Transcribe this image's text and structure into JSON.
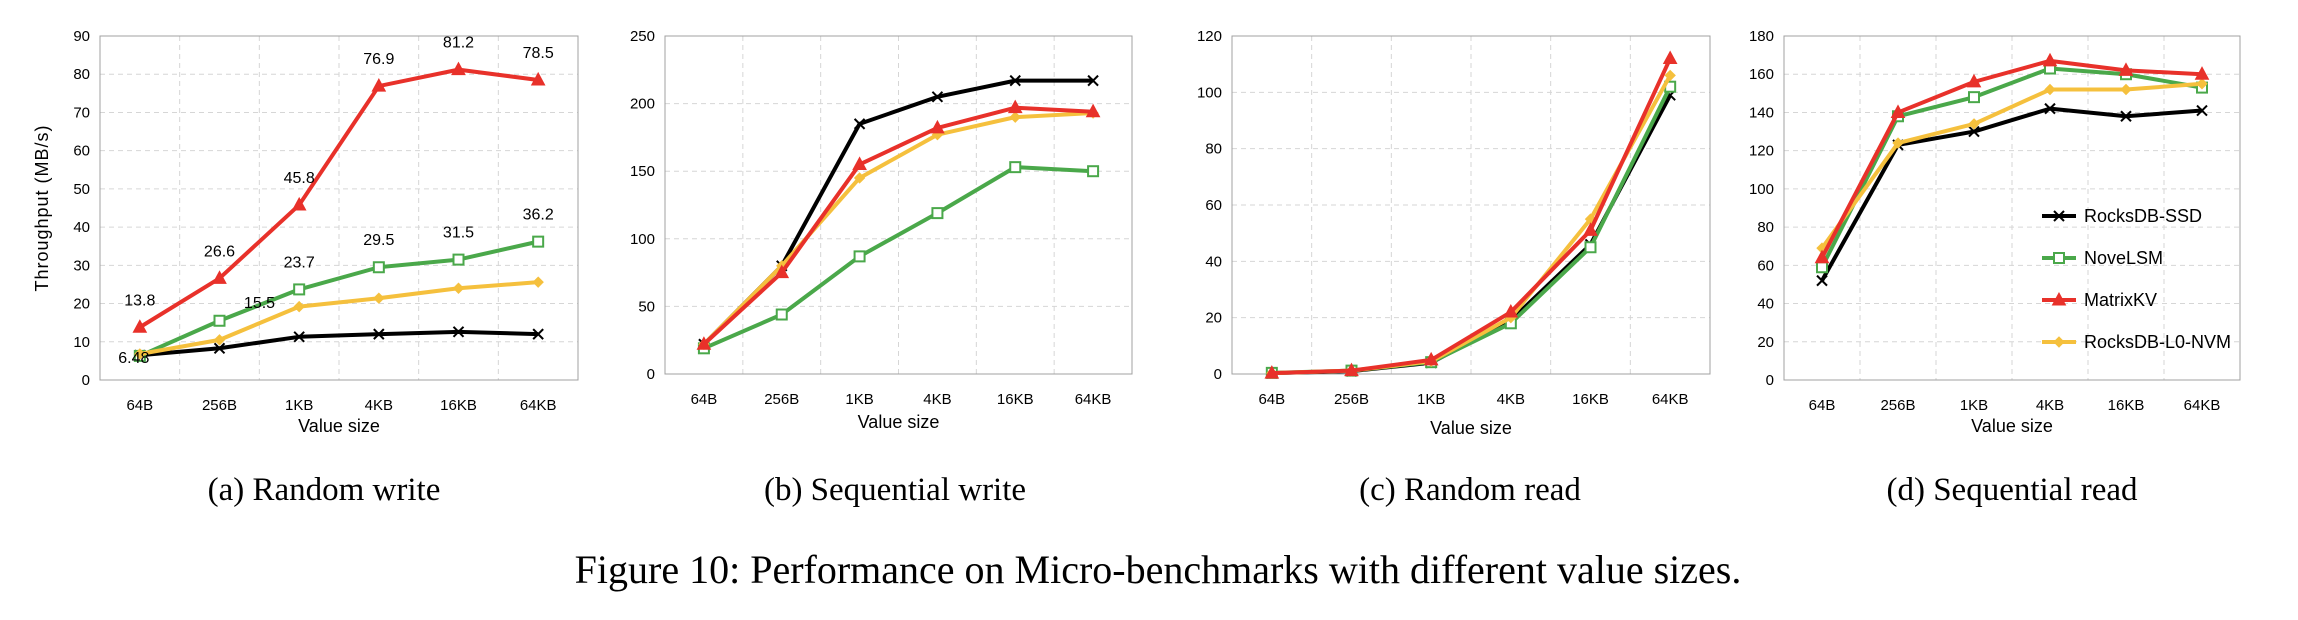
{
  "figure": {
    "caption": "Figure 10: Performance on Micro-benchmarks with different value sizes.",
    "colors": {
      "axis": "#a0a0a0",
      "grid": "#d6d6d6"
    }
  },
  "legend": {
    "entries": [
      {
        "name": "RocksDB-SSD",
        "color": "#000000",
        "marker": "x"
      },
      {
        "name": "NoveLSM",
        "color": "#4aa84a",
        "marker": "square"
      },
      {
        "name": "MatrixKV",
        "color": "#e8312a",
        "marker": "triangle"
      },
      {
        "name": "RocksDB-L0-NVM",
        "color": "#f5c03d",
        "marker": "diamond"
      }
    ]
  },
  "chart_data": [
    {
      "type": "line",
      "subcaption": "(a)  Random write",
      "categories": [
        "64B",
        "256B",
        "1KB",
        "4KB",
        "16KB",
        "64KB"
      ],
      "xlabel": "Value size",
      "ylabel": "Throughput (MB/s)",
      "ylim": [
        0,
        90
      ],
      "yticks": [
        0,
        10,
        20,
        30,
        40,
        50,
        60,
        70,
        80,
        90
      ],
      "grid": true,
      "series": [
        {
          "name": "RocksDB-SSD",
          "values": [
            6.48,
            8.3,
            11.3,
            12.0,
            12.6,
            12.0
          ]
        },
        {
          "name": "NoveLSM",
          "values": [
            6.3,
            15.5,
            23.7,
            29.5,
            31.5,
            36.2
          ]
        },
        {
          "name": "MatrixKV",
          "values": [
            13.8,
            26.6,
            45.8,
            76.9,
            81.2,
            78.5
          ]
        },
        {
          "name": "RocksDB-L0-NVM",
          "values": [
            6.8,
            10.5,
            19.2,
            21.4,
            24.0,
            25.6
          ]
        }
      ],
      "annotations": [
        {
          "text": "13.8",
          "series": "MatrixKV",
          "index": 0
        },
        {
          "text": "26.6",
          "series": "MatrixKV",
          "index": 1
        },
        {
          "text": "45.8",
          "series": "MatrixKV",
          "index": 2
        },
        {
          "text": "76.9",
          "series": "MatrixKV",
          "index": 3
        },
        {
          "text": "81.2",
          "series": "MatrixKV",
          "index": 4
        },
        {
          "text": "78.5",
          "series": "MatrixKV",
          "index": 5
        },
        {
          "text": "6.48",
          "series": "RocksDB-SSD",
          "index": 0
        },
        {
          "text": "15.5",
          "series": "NoveLSM",
          "index": 1
        },
        {
          "text": "23.7",
          "series": "NoveLSM",
          "index": 2
        },
        {
          "text": "29.5",
          "series": "NoveLSM",
          "index": 3
        },
        {
          "text": "31.5",
          "series": "NoveLSM",
          "index": 4
        },
        {
          "text": "36.2",
          "series": "NoveLSM",
          "index": 5
        }
      ]
    },
    {
      "type": "line",
      "subcaption": "(b)  Sequential write",
      "categories": [
        "64B",
        "256B",
        "1KB",
        "4KB",
        "16KB",
        "64KB"
      ],
      "xlabel": "Value size",
      "ylabel": "",
      "ylim": [
        0,
        250
      ],
      "yticks": [
        0,
        50,
        100,
        150,
        200,
        250
      ],
      "grid": true,
      "series": [
        {
          "name": "RocksDB-SSD",
          "values": [
            22,
            80,
            185,
            205,
            217,
            217
          ]
        },
        {
          "name": "NoveLSM",
          "values": [
            19,
            44,
            87,
            119,
            153,
            150
          ]
        },
        {
          "name": "MatrixKV",
          "values": [
            22,
            75,
            155,
            182,
            197,
            194
          ]
        },
        {
          "name": "RocksDB-L0-NVM",
          "values": [
            22,
            80,
            145,
            177,
            190,
            193
          ]
        }
      ],
      "annotations": []
    },
    {
      "type": "line",
      "subcaption": "(c)  Random read",
      "categories": [
        "64B",
        "256B",
        "1KB",
        "4KB",
        "16KB",
        "64KB"
      ],
      "xlabel": "Value size",
      "ylabel": "",
      "ylim": [
        0,
        120
      ],
      "yticks": [
        0,
        20,
        40,
        60,
        80,
        100,
        120
      ],
      "grid": true,
      "series": [
        {
          "name": "RocksDB-SSD",
          "values": [
            0.3,
            1.0,
            4.0,
            19.0,
            46.0,
            99.0
          ]
        },
        {
          "name": "NoveLSM",
          "values": [
            0.4,
            1.2,
            4.2,
            18.0,
            45.0,
            102.0
          ]
        },
        {
          "name": "MatrixKV",
          "values": [
            0.3,
            1.2,
            5.0,
            22.0,
            51.0,
            112.0
          ]
        },
        {
          "name": "RocksDB-L0-NVM",
          "values": [
            0.3,
            1.2,
            4.5,
            20.0,
            55.0,
            106.0
          ]
        }
      ],
      "annotations": []
    },
    {
      "type": "line",
      "subcaption": "(d)  Sequential read",
      "categories": [
        "64B",
        "256B",
        "1KB",
        "4KB",
        "16KB",
        "64KB"
      ],
      "xlabel": "Value size",
      "ylabel": "",
      "ylim": [
        0,
        180
      ],
      "yticks": [
        0,
        20,
        40,
        60,
        80,
        100,
        120,
        140,
        160,
        180
      ],
      "grid": true,
      "legend": "right",
      "series": [
        {
          "name": "RocksDB-SSD",
          "values": [
            52,
            123,
            130,
            142,
            138,
            141
          ]
        },
        {
          "name": "NoveLSM",
          "values": [
            59,
            138,
            148,
            163,
            160,
            153
          ]
        },
        {
          "name": "MatrixKV",
          "values": [
            64,
            140,
            156,
            167,
            162,
            160
          ]
        },
        {
          "name": "RocksDB-L0-NVM",
          "values": [
            69,
            124,
            134,
            152,
            152,
            155
          ]
        }
      ],
      "annotations": []
    }
  ]
}
